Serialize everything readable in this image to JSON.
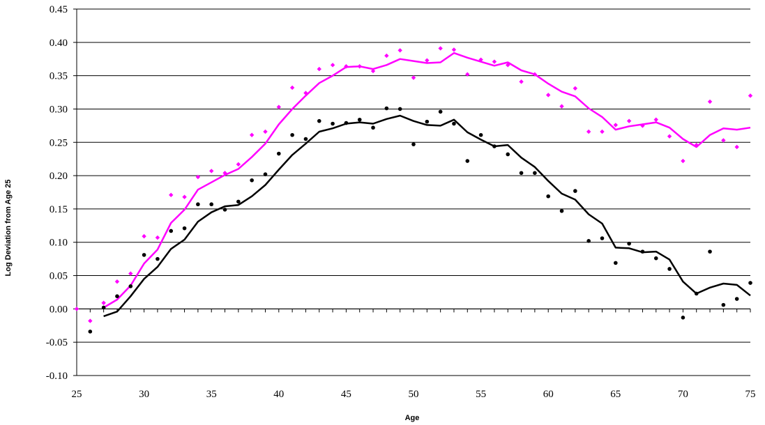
{
  "chart_data": {
    "type": "scatter",
    "title": "",
    "xlabel": "Age",
    "ylabel": "Log Deviation from Age 25",
    "xlim": [
      25,
      75
    ],
    "ylim": [
      -0.1,
      0.45
    ],
    "x_ticks": [
      25,
      30,
      35,
      40,
      45,
      50,
      55,
      60,
      65,
      70,
      75
    ],
    "y_ticks": [
      -0.1,
      -0.05,
      0.0,
      0.05,
      0.1,
      0.15,
      0.2,
      0.25,
      0.3,
      0.35,
      0.4,
      0.45
    ],
    "y_tick_labels": [
      "-0.10",
      "-0.05",
      "0.00",
      "0.05",
      "0.10",
      "0.15",
      "0.20",
      "0.25",
      "0.30",
      "0.35",
      "0.40",
      "0.45"
    ],
    "grid": "horizontal",
    "legend": "none",
    "series": [
      {
        "style": "points",
        "marker": "diamond",
        "color": "#ff00ff",
        "x": [
          25,
          26,
          27,
          28,
          29,
          30,
          31,
          32,
          33,
          34,
          35,
          36,
          37,
          38,
          39,
          40,
          41,
          42,
          43,
          44,
          45,
          46,
          47,
          48,
          49,
          50,
          51,
          52,
          53,
          54,
          55,
          56,
          57,
          58,
          59,
          60,
          61,
          62,
          63,
          64,
          65,
          66,
          67,
          68,
          69,
          70,
          71,
          72,
          73,
          74,
          75
        ],
        "y": [
          0.0,
          -0.018,
          0.009,
          0.041,
          0.053,
          0.109,
          0.107,
          0.171,
          0.168,
          0.198,
          0.207,
          0.204,
          0.217,
          0.261,
          0.266,
          0.303,
          0.332,
          0.324,
          0.36,
          0.366,
          0.364,
          0.364,
          0.357,
          0.38,
          0.388,
          0.347,
          0.373,
          0.391,
          0.389,
          0.352,
          0.374,
          0.371,
          0.366,
          0.341,
          0.352,
          0.321,
          0.304,
          0.331,
          0.266,
          0.266,
          0.276,
          0.282,
          0.275,
          0.284,
          0.259,
          0.222,
          0.246,
          0.311,
          0.253,
          0.243,
          0.32
        ]
      },
      {
        "style": "line",
        "color": "#ff00ff",
        "x": [
          27,
          28,
          29,
          30,
          31,
          32,
          33,
          34,
          35,
          36,
          37,
          38,
          39,
          40,
          41,
          42,
          43,
          44,
          45,
          46,
          47,
          48,
          49,
          50,
          51,
          52,
          53,
          54,
          55,
          56,
          57,
          58,
          59,
          60,
          61,
          62,
          63,
          64,
          65,
          66,
          67,
          68,
          69,
          70,
          71,
          72,
          73,
          74,
          75
        ],
        "y": [
          0.002,
          0.014,
          0.035,
          0.068,
          0.089,
          0.129,
          0.149,
          0.179,
          0.19,
          0.201,
          0.21,
          0.228,
          0.248,
          0.277,
          0.3,
          0.32,
          0.339,
          0.35,
          0.363,
          0.364,
          0.36,
          0.366,
          0.375,
          0.372,
          0.369,
          0.37,
          0.384,
          0.377,
          0.371,
          0.365,
          0.37,
          0.358,
          0.352,
          0.338,
          0.326,
          0.319,
          0.301,
          0.288,
          0.269,
          0.274,
          0.277,
          0.28,
          0.272,
          0.255,
          0.243,
          0.261,
          0.271,
          0.269,
          0.272
        ]
      },
      {
        "style": "points",
        "marker": "circle",
        "color": "#000000",
        "x": [
          26,
          27,
          28,
          29,
          30,
          31,
          32,
          33,
          34,
          35,
          36,
          37,
          38,
          39,
          40,
          41,
          42,
          43,
          44,
          45,
          46,
          47,
          48,
          49,
          50,
          51,
          52,
          53,
          54,
          55,
          56,
          57,
          58,
          59,
          60,
          61,
          62,
          63,
          64,
          65,
          66,
          67,
          68,
          69,
          70,
          71,
          72,
          73,
          74,
          75
        ],
        "y": [
          -0.034,
          0.002,
          0.019,
          0.034,
          0.081,
          0.075,
          0.117,
          0.121,
          0.157,
          0.157,
          0.149,
          0.161,
          0.193,
          0.202,
          0.233,
          0.261,
          0.255,
          0.282,
          0.278,
          0.279,
          0.284,
          0.272,
          0.301,
          0.3,
          0.247,
          0.281,
          0.296,
          0.278,
          0.222,
          0.261,
          0.244,
          0.232,
          0.204,
          0.204,
          0.169,
          0.147,
          0.177,
          0.102,
          0.106,
          0.069,
          0.098,
          0.086,
          0.076,
          0.06,
          -0.013,
          0.023,
          0.086,
          0.006,
          0.015,
          0.039
        ]
      },
      {
        "style": "line",
        "color": "#000000",
        "x": [
          27,
          28,
          29,
          30,
          31,
          32,
          33,
          34,
          35,
          36,
          37,
          38,
          39,
          40,
          41,
          42,
          43,
          44,
          45,
          46,
          47,
          48,
          49,
          50,
          51,
          52,
          53,
          54,
          55,
          56,
          57,
          58,
          59,
          60,
          61,
          62,
          63,
          64,
          65,
          66,
          67,
          68,
          69,
          70,
          71,
          72,
          73,
          74,
          75
        ],
        "y": [
          -0.011,
          -0.004,
          0.019,
          0.045,
          0.063,
          0.09,
          0.104,
          0.131,
          0.145,
          0.154,
          0.156,
          0.169,
          0.186,
          0.209,
          0.231,
          0.248,
          0.266,
          0.271,
          0.278,
          0.28,
          0.278,
          0.285,
          0.29,
          0.282,
          0.276,
          0.275,
          0.284,
          0.265,
          0.254,
          0.244,
          0.246,
          0.227,
          0.213,
          0.192,
          0.173,
          0.164,
          0.142,
          0.128,
          0.092,
          0.091,
          0.085,
          0.086,
          0.074,
          0.041,
          0.023,
          0.032,
          0.038,
          0.036,
          0.02
        ]
      }
    ]
  }
}
